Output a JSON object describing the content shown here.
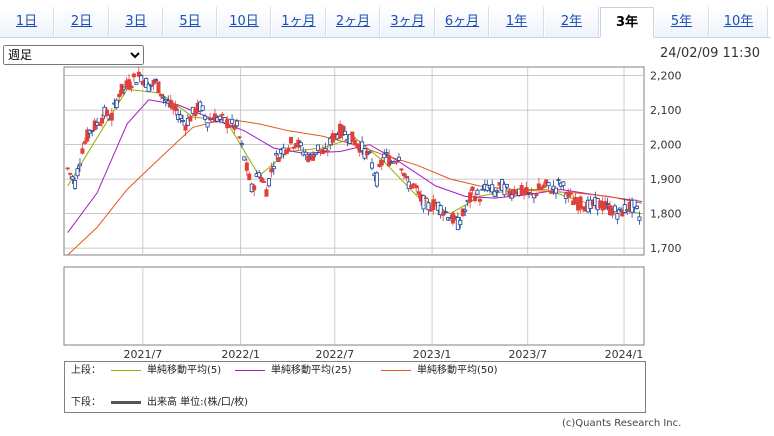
{
  "tabs": [
    {
      "label": "1日",
      "active": false
    },
    {
      "label": "2日",
      "active": false
    },
    {
      "label": "3日",
      "active": false
    },
    {
      "label": "5日",
      "active": false
    },
    {
      "label": "10日",
      "active": false
    },
    {
      "label": "1ヶ月",
      "active": false
    },
    {
      "label": "2ヶ月",
      "active": false
    },
    {
      "label": "3ヶ月",
      "active": false
    },
    {
      "label": "6ヶ月",
      "active": false
    },
    {
      "label": "1年",
      "active": false
    },
    {
      "label": "2年",
      "active": false
    },
    {
      "label": "3年",
      "active": true
    },
    {
      "label": "5年",
      "active": false
    },
    {
      "label": "10年",
      "active": false
    }
  ],
  "period_select": {
    "value": "週足"
  },
  "timestamp": "24/02/09 11:30",
  "legend": {
    "upper_label": "上段：",
    "lower_label": "下段：",
    "lower_text": "出来高 単位:(株/口/枚)",
    "lower_color": "#555555"
  },
  "copyright": "(c)Quants Research Inc.",
  "colors": {
    "up": "#e0403a",
    "down": "#1c3f94",
    "grid": "#b8b8b8"
  },
  "chart_data": {
    "type": "candlestick",
    "y_ticks": [
      "2,200",
      "2,100",
      "2,000",
      "1,900",
      "1,800",
      "1,700"
    ],
    "ylim": [
      1680,
      2225
    ],
    "x_ticks": [
      "2021/7",
      "2022/1",
      "2022/7",
      "2023/1",
      "2023/7",
      "2024/1"
    ],
    "x_range": [
      "2021-02-01",
      "2024-02-09"
    ],
    "series_price": [
      [
        "2021-02-08",
        1930
      ],
      [
        "2021-02-22",
        1890
      ],
      [
        "2021-03-08",
        1990
      ],
      [
        "2021-03-22",
        2040
      ],
      [
        "2021-04-05",
        2060
      ],
      [
        "2021-04-19",
        2090
      ],
      [
        "2021-05-03",
        2080
      ],
      [
        "2021-05-17",
        2150
      ],
      [
        "2021-05-31",
        2170
      ],
      [
        "2021-06-14",
        2190
      ],
      [
        "2021-06-28",
        2200
      ],
      [
        "2021-07-12",
        2170
      ],
      [
        "2021-07-26",
        2180
      ],
      [
        "2021-08-09",
        2140
      ],
      [
        "2021-08-23",
        2110
      ],
      [
        "2021-09-06",
        2090
      ],
      [
        "2021-09-20",
        2060
      ],
      [
        "2021-10-04",
        2090
      ],
      [
        "2021-10-18",
        2110
      ],
      [
        "2021-11-01",
        2070
      ],
      [
        "2021-11-15",
        2080
      ],
      [
        "2021-11-29",
        2070
      ],
      [
        "2021-12-13",
        2060
      ],
      [
        "2021-12-27",
        2050
      ],
      [
        "2022-01-10",
        1960
      ],
      [
        "2022-01-24",
        1870
      ],
      [
        "2022-02-07",
        1920
      ],
      [
        "2022-02-21",
        1870
      ],
      [
        "2022-03-07",
        1950
      ],
      [
        "2022-03-21",
        1980
      ],
      [
        "2022-04-04",
        2000
      ],
      [
        "2022-04-18",
        2010
      ],
      [
        "2022-05-02",
        1980
      ],
      [
        "2022-05-16",
        1960
      ],
      [
        "2022-05-30",
        1990
      ],
      [
        "2022-06-13",
        1970
      ],
      [
        "2022-06-27",
        2020
      ],
      [
        "2022-07-11",
        2040
      ],
      [
        "2022-07-25",
        2030
      ],
      [
        "2022-08-08",
        2010
      ],
      [
        "2022-08-22",
        1990
      ],
      [
        "2022-09-05",
        1960
      ],
      [
        "2022-09-19",
        1900
      ],
      [
        "2022-10-03",
        1970
      ],
      [
        "2022-10-17",
        1950
      ],
      [
        "2022-10-31",
        1970
      ],
      [
        "2022-11-14",
        1890
      ],
      [
        "2022-11-28",
        1880
      ],
      [
        "2022-12-12",
        1840
      ],
      [
        "2022-12-26",
        1820
      ],
      [
        "2023-01-09",
        1830
      ],
      [
        "2023-01-23",
        1810
      ],
      [
        "2023-02-06",
        1790
      ],
      [
        "2023-02-20",
        1770
      ],
      [
        "2023-03-06",
        1810
      ],
      [
        "2023-03-20",
        1860
      ],
      [
        "2023-04-03",
        1850
      ],
      [
        "2023-04-17",
        1880
      ],
      [
        "2023-05-01",
        1860
      ],
      [
        "2023-05-15",
        1880
      ],
      [
        "2023-05-29",
        1860
      ],
      [
        "2023-06-12",
        1870
      ],
      [
        "2023-06-26",
        1860
      ],
      [
        "2023-07-10",
        1850
      ],
      [
        "2023-07-24",
        1870
      ],
      [
        "2023-08-07",
        1880
      ],
      [
        "2023-08-21",
        1870
      ],
      [
        "2023-09-04",
        1890
      ],
      [
        "2023-09-18",
        1850
      ],
      [
        "2023-10-02",
        1830
      ],
      [
        "2023-10-16",
        1830
      ],
      [
        "2023-10-30",
        1820
      ],
      [
        "2023-11-13",
        1830
      ],
      [
        "2023-11-27",
        1820
      ],
      [
        "2023-12-11",
        1810
      ],
      [
        "2023-12-25",
        1800
      ],
      [
        "2024-01-08",
        1820
      ],
      [
        "2024-01-22",
        1820
      ],
      [
        "2024-02-05",
        1775
      ]
    ],
    "series": [
      {
        "name": "単純移動平均(5)",
        "color": "#8cb400",
        "values": [
          [
            "2021-02-08",
            1880
          ],
          [
            "2021-04-05",
            2020
          ],
          [
            "2021-06-01",
            2160
          ],
          [
            "2021-08-02",
            2150
          ],
          [
            "2021-10-04",
            2080
          ],
          [
            "2021-12-06",
            2070
          ],
          [
            "2022-02-07",
            1910
          ],
          [
            "2022-04-04",
            1980
          ],
          [
            "2022-06-06",
            1990
          ],
          [
            "2022-08-08",
            2020
          ],
          [
            "2022-10-03",
            1950
          ],
          [
            "2022-12-05",
            1850
          ],
          [
            "2023-02-06",
            1800
          ],
          [
            "2023-04-03",
            1850
          ],
          [
            "2023-06-05",
            1870
          ],
          [
            "2023-08-07",
            1870
          ],
          [
            "2023-10-02",
            1840
          ],
          [
            "2023-12-04",
            1815
          ],
          [
            "2024-02-05",
            1800
          ]
        ]
      },
      {
        "name": "単純移動平均(25)",
        "color": "#a01cc8",
        "values": [
          [
            "2021-02-08",
            1745
          ],
          [
            "2021-04-05",
            1860
          ],
          [
            "2021-06-01",
            2060
          ],
          [
            "2021-07-12",
            2130
          ],
          [
            "2021-09-06",
            2115
          ],
          [
            "2021-11-01",
            2080
          ],
          [
            "2022-01-10",
            2040
          ],
          [
            "2022-03-07",
            1990
          ],
          [
            "2022-05-02",
            1975
          ],
          [
            "2022-07-11",
            1980
          ],
          [
            "2022-09-05",
            2000
          ],
          [
            "2022-11-01",
            1950
          ],
          [
            "2023-01-09",
            1880
          ],
          [
            "2023-03-06",
            1850
          ],
          [
            "2023-05-01",
            1845
          ],
          [
            "2023-07-03",
            1855
          ],
          [
            "2023-09-04",
            1870
          ],
          [
            "2023-11-06",
            1855
          ],
          [
            "2024-02-05",
            1835
          ]
        ]
      },
      {
        "name": "単純移動平均(50)",
        "color": "#e05a1c",
        "values": [
          [
            "2021-02-08",
            1680
          ],
          [
            "2021-04-05",
            1760
          ],
          [
            "2021-06-01",
            1870
          ],
          [
            "2021-08-02",
            1960
          ],
          [
            "2021-10-04",
            2050
          ],
          [
            "2021-12-06",
            2075
          ],
          [
            "2022-02-07",
            2060
          ],
          [
            "2022-04-04",
            2040
          ],
          [
            "2022-06-06",
            2025
          ],
          [
            "2022-08-08",
            2000
          ],
          [
            "2022-10-03",
            1970
          ],
          [
            "2022-12-05",
            1940
          ],
          [
            "2023-02-06",
            1900
          ],
          [
            "2023-04-03",
            1880
          ],
          [
            "2023-06-05",
            1870
          ],
          [
            "2023-08-07",
            1865
          ],
          [
            "2023-10-02",
            1860
          ],
          [
            "2023-12-04",
            1850
          ],
          [
            "2024-02-05",
            1830
          ]
        ]
      }
    ],
    "volume": []
  }
}
